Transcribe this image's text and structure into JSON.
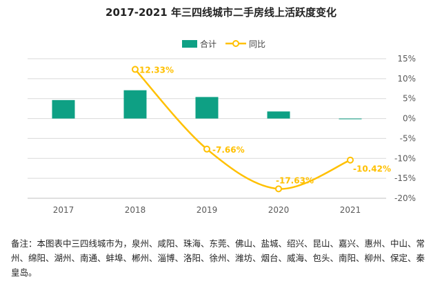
{
  "chart_data": {
    "type": "bar+line",
    "title": "2017-2021 年三四线城市二手房线上活跃度变化",
    "categories": [
      "2017",
      "2018",
      "2019",
      "2020",
      "2021"
    ],
    "series": [
      {
        "name": "合计",
        "type": "bar",
        "axis": "unscaled",
        "values": [
          6,
          9.2,
          7,
          2.3,
          -0.1
        ],
        "color": "#0ea084"
      },
      {
        "name": "同比",
        "type": "line",
        "axis": "right",
        "values": [
          null,
          12.33,
          -7.66,
          -17.63,
          -10.42
        ],
        "labels": [
          "",
          "12.33%",
          "-7.66%",
          "-17.63%",
          "-10.42%"
        ],
        "color": "#ffc000"
      }
    ],
    "y_right": {
      "range": [
        -20,
        15
      ],
      "ticks": [
        "15%",
        "10%",
        "5%",
        "0%",
        "-5%",
        "-10%",
        "-15%",
        "-20%"
      ]
    },
    "legend_position": "top",
    "grid": true
  },
  "note": {
    "prefix": "备注：",
    "text": "本图表中三四线城市为，泉州、咸阳、珠海、东莞、佛山、盐城、绍兴、昆山、嘉兴、惠州、中山、常州、绵阳、湖州、南通、蚌埠、郴州、淄博、洛阳、徐州、潍坊、烟台、威海、包头、南阳、柳州、保定、秦皇岛。"
  }
}
